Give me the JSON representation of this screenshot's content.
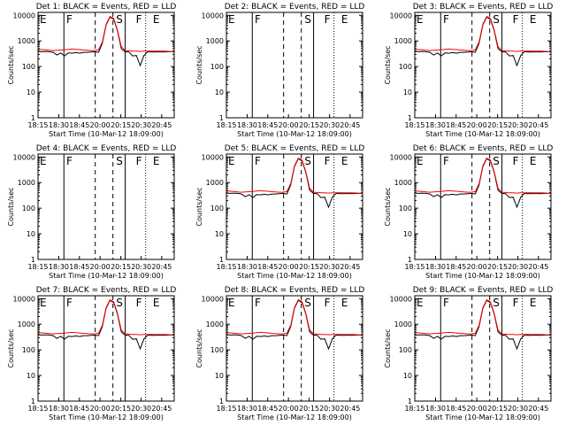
{
  "plot_colors": {
    "events": "#000000",
    "lld": "#ff0000",
    "background": "#ffffff",
    "axis": "#000000"
  },
  "chart_data": [
    {
      "type": "line",
      "title": "Det 1: BLACK = Events, RED = LLD",
      "show_data": true,
      "xticks": [
        "18:15",
        "18:30",
        "18:45",
        "20:00",
        "20:15",
        "20:30",
        "20:45"
      ],
      "xlabel": "Start Time (10-Mar-12 18:09:00)",
      "ylabel": "Counts/sec",
      "yticks": [
        "1",
        "10",
        "100",
        "1000",
        "10000"
      ],
      "ylim": [
        1,
        13000
      ],
      "log_y": true,
      "x_hours": [
        0,
        0.5,
        1,
        1.5,
        2,
        2.5,
        3,
        3.5,
        4,
        4.5,
        5,
        5.5,
        6,
        6.5,
        7,
        7.5,
        8,
        8.5,
        9,
        9.5,
        10,
        10.5,
        11,
        11.5,
        12,
        12.5,
        13,
        13.5,
        14,
        14.5,
        15,
        15.5,
        16,
        16.5,
        17,
        17.5,
        18
      ],
      "series": [
        {
          "name": "BLACK = Events",
          "values": [
            390,
            380,
            390,
            380,
            360,
            280,
            340,
            260,
            340,
            330,
            350,
            330,
            360,
            360,
            370,
            380,
            360,
            800,
            4200,
            8500,
            7000,
            2500,
            500,
            380,
            370,
            260,
            270,
            110,
            270,
            380,
            370,
            370,
            375,
            370,
            375,
            380,
            380
          ]
        },
        {
          "name": "RED = LLD",
          "values": [
            470,
            460,
            450,
            430,
            420,
            430,
            440,
            450,
            470,
            480,
            470,
            460,
            440,
            430,
            420,
            420,
            450,
            900,
            4500,
            9000,
            7500,
            2700,
            600,
            420,
            410,
            400,
            400,
            390,
            400,
            400,
            405,
            400,
            400,
            400,
            395,
            390,
            385
          ]
        }
      ],
      "markers": [
        "E",
        "F",
        "S",
        "F",
        "E"
      ]
    },
    {
      "type": "line",
      "title": "Det 2: BLACK = Events, RED = LLD",
      "show_data": false,
      "xticks": [
        "18:15",
        "18:30",
        "18:45",
        "20:00",
        "20:15",
        "20:30",
        "20:45"
      ],
      "xlabel": "Start Time (10-Mar-12 18:09:00)",
      "ylabel": "Counts/sec",
      "yticks": [
        "1",
        "10",
        "100",
        "1000",
        "10000"
      ],
      "ylim": [
        1,
        13000
      ],
      "log_y": true,
      "x_hours": [],
      "series": [],
      "markers": [
        "E",
        "F",
        "S",
        "F",
        "E"
      ]
    },
    {
      "type": "line",
      "title": "Det 3: BLACK = Events, RED = LLD",
      "show_data": true,
      "xticks": [
        "18:15",
        "18:30",
        "18:45",
        "20:00",
        "20:15",
        "20:30",
        "20:45"
      ],
      "xlabel": "Start Time (10-Mar-12 18:09:00)",
      "ylabel": "Counts/sec",
      "yticks": [
        "1",
        "10",
        "100",
        "1000",
        "10000"
      ],
      "ylim": [
        1,
        13000
      ],
      "log_y": true,
      "x_hours": [
        0,
        0.5,
        1,
        1.5,
        2,
        2.5,
        3,
        3.5,
        4,
        4.5,
        5,
        5.5,
        6,
        6.5,
        7,
        7.5,
        8,
        8.5,
        9,
        9.5,
        10,
        10.5,
        11,
        11.5,
        12,
        12.5,
        13,
        13.5,
        14,
        14.5,
        15,
        15.5,
        16,
        16.5,
        17,
        17.5,
        18
      ],
      "series": [
        {
          "name": "BLACK = Events",
          "values": [
            390,
            380,
            390,
            380,
            360,
            280,
            340,
            260,
            340,
            330,
            350,
            330,
            360,
            360,
            370,
            380,
            360,
            800,
            4200,
            8500,
            7000,
            2500,
            500,
            380,
            370,
            260,
            270,
            110,
            270,
            380,
            370,
            370,
            375,
            370,
            375,
            380,
            380
          ]
        },
        {
          "name": "RED = LLD",
          "values": [
            470,
            460,
            450,
            430,
            420,
            430,
            440,
            450,
            470,
            480,
            470,
            460,
            440,
            430,
            420,
            420,
            450,
            900,
            4500,
            9000,
            7500,
            2700,
            600,
            420,
            410,
            400,
            400,
            390,
            400,
            400,
            405,
            400,
            400,
            400,
            395,
            390,
            385
          ]
        }
      ],
      "markers": [
        "E",
        "F",
        "S",
        "F",
        "E"
      ]
    },
    {
      "type": "line",
      "title": "Det 4: BLACK = Events, RED = LLD",
      "show_data": false,
      "xticks": [
        "18:15",
        "18:30",
        "18:45",
        "20:00",
        "20:15",
        "20:30",
        "20:45"
      ],
      "xlabel": "Start Time (10-Mar-12 18:09:00)",
      "ylabel": "Counts/sec",
      "yticks": [
        "1",
        "10",
        "100",
        "1000",
        "10000"
      ],
      "ylim": [
        1,
        13000
      ],
      "log_y": true,
      "x_hours": [],
      "series": [],
      "markers": [
        "E",
        "F",
        "S",
        "F",
        "E"
      ]
    },
    {
      "type": "line",
      "title": "Det 5: BLACK = Events, RED = LLD",
      "show_data": true,
      "xticks": [
        "18:15",
        "18:30",
        "18:45",
        "20:00",
        "20:15",
        "20:30",
        "20:45"
      ],
      "xlabel": "Start Time (10-Mar-12 18:09:00)",
      "ylabel": "Counts/sec",
      "yticks": [
        "1",
        "10",
        "100",
        "1000",
        "10000"
      ],
      "ylim": [
        1,
        13000
      ],
      "log_y": true,
      "x_hours": [
        0,
        0.5,
        1,
        1.5,
        2,
        2.5,
        3,
        3.5,
        4,
        4.5,
        5,
        5.5,
        6,
        6.5,
        7,
        7.5,
        8,
        8.5,
        9,
        9.5,
        10,
        10.5,
        11,
        11.5,
        12,
        12.5,
        13,
        13.5,
        14,
        14.5,
        15,
        15.5,
        16,
        16.5,
        17,
        17.5,
        18
      ],
      "series": [
        {
          "name": "BLACK = Events",
          "values": [
            390,
            380,
            390,
            380,
            360,
            280,
            340,
            260,
            340,
            330,
            350,
            330,
            360,
            360,
            370,
            380,
            360,
            800,
            4200,
            8500,
            7000,
            2500,
            500,
            380,
            370,
            260,
            270,
            110,
            270,
            380,
            370,
            370,
            375,
            370,
            375,
            380,
            380
          ]
        },
        {
          "name": "RED = LLD",
          "values": [
            470,
            460,
            450,
            430,
            420,
            430,
            440,
            450,
            470,
            480,
            470,
            460,
            440,
            430,
            420,
            420,
            450,
            900,
            4500,
            9000,
            7500,
            2700,
            600,
            420,
            410,
            400,
            400,
            390,
            400,
            400,
            405,
            400,
            400,
            400,
            395,
            390,
            385
          ]
        }
      ],
      "markers": [
        "E",
        "F",
        "S",
        "F",
        "E"
      ]
    },
    {
      "type": "line",
      "title": "Det 6: BLACK = Events, RED = LLD",
      "show_data": true,
      "xticks": [
        "18:15",
        "18:30",
        "18:45",
        "20:00",
        "20:15",
        "20:30",
        "20:45"
      ],
      "xlabel": "Start Time (10-Mar-12 18:09:00)",
      "ylabel": "Counts/sec",
      "yticks": [
        "1",
        "10",
        "100",
        "1000",
        "10000"
      ],
      "ylim": [
        1,
        13000
      ],
      "log_y": true,
      "x_hours": [
        0,
        0.5,
        1,
        1.5,
        2,
        2.5,
        3,
        3.5,
        4,
        4.5,
        5,
        5.5,
        6,
        6.5,
        7,
        7.5,
        8,
        8.5,
        9,
        9.5,
        10,
        10.5,
        11,
        11.5,
        12,
        12.5,
        13,
        13.5,
        14,
        14.5,
        15,
        15.5,
        16,
        16.5,
        17,
        17.5,
        18
      ],
      "series": [
        {
          "name": "BLACK = Events",
          "values": [
            390,
            380,
            390,
            380,
            360,
            280,
            340,
            260,
            340,
            330,
            350,
            330,
            360,
            360,
            370,
            380,
            360,
            800,
            4200,
            8500,
            7000,
            2500,
            500,
            380,
            370,
            260,
            270,
            110,
            270,
            380,
            370,
            370,
            375,
            370,
            375,
            380,
            380
          ]
        },
        {
          "name": "RED = LLD",
          "values": [
            470,
            460,
            450,
            430,
            420,
            430,
            440,
            450,
            470,
            480,
            470,
            460,
            440,
            430,
            420,
            420,
            450,
            900,
            4500,
            9000,
            7500,
            2700,
            600,
            420,
            410,
            400,
            400,
            390,
            400,
            400,
            405,
            400,
            400,
            400,
            395,
            390,
            385
          ]
        }
      ],
      "markers": [
        "E",
        "F",
        "S",
        "F",
        "E"
      ]
    },
    {
      "type": "line",
      "title": "Det 7: BLACK = Events, RED = LLD",
      "show_data": true,
      "xticks": [
        "18:15",
        "18:30",
        "18:45",
        "20:00",
        "20:15",
        "20:30",
        "20:45"
      ],
      "xlabel": "Start Time (10-Mar-12 18:09:00)",
      "ylabel": "Counts/sec",
      "yticks": [
        "1",
        "10",
        "100",
        "1000",
        "10000"
      ],
      "ylim": [
        1,
        13000
      ],
      "log_y": true,
      "x_hours": [
        0,
        0.5,
        1,
        1.5,
        2,
        2.5,
        3,
        3.5,
        4,
        4.5,
        5,
        5.5,
        6,
        6.5,
        7,
        7.5,
        8,
        8.5,
        9,
        9.5,
        10,
        10.5,
        11,
        11.5,
        12,
        12.5,
        13,
        13.5,
        14,
        14.5,
        15,
        15.5,
        16,
        16.5,
        17,
        17.5,
        18
      ],
      "series": [
        {
          "name": "BLACK = Events",
          "values": [
            390,
            380,
            390,
            380,
            360,
            280,
            340,
            260,
            340,
            330,
            350,
            330,
            360,
            360,
            370,
            380,
            360,
            800,
            4200,
            8500,
            7000,
            2500,
            500,
            380,
            370,
            260,
            270,
            110,
            270,
            380,
            370,
            370,
            375,
            370,
            375,
            380,
            380
          ]
        },
        {
          "name": "RED = LLD",
          "values": [
            470,
            460,
            450,
            430,
            420,
            430,
            440,
            450,
            470,
            480,
            470,
            460,
            440,
            430,
            420,
            420,
            450,
            900,
            4500,
            9000,
            7500,
            2700,
            600,
            420,
            410,
            400,
            400,
            390,
            400,
            400,
            405,
            400,
            400,
            400,
            395,
            390,
            385
          ]
        }
      ],
      "markers": [
        "E",
        "F",
        "S",
        "F",
        "E"
      ]
    },
    {
      "type": "line",
      "title": "Det 8: BLACK = Events, RED = LLD",
      "show_data": true,
      "xticks": [
        "18:15",
        "18:30",
        "18:45",
        "20:00",
        "20:15",
        "20:30",
        "20:45"
      ],
      "xlabel": "Start Time (10-Mar-12 18:09:00)",
      "ylabel": "Counts/sec",
      "yticks": [
        "1",
        "10",
        "100",
        "1000",
        "10000"
      ],
      "ylim": [
        1,
        13000
      ],
      "log_y": true,
      "x_hours": [
        0,
        0.5,
        1,
        1.5,
        2,
        2.5,
        3,
        3.5,
        4,
        4.5,
        5,
        5.5,
        6,
        6.5,
        7,
        7.5,
        8,
        8.5,
        9,
        9.5,
        10,
        10.5,
        11,
        11.5,
        12,
        12.5,
        13,
        13.5,
        14,
        14.5,
        15,
        15.5,
        16,
        16.5,
        17,
        17.5,
        18
      ],
      "series": [
        {
          "name": "BLACK = Events",
          "values": [
            390,
            380,
            390,
            380,
            360,
            280,
            340,
            260,
            340,
            330,
            350,
            330,
            360,
            360,
            370,
            380,
            360,
            800,
            4200,
            8500,
            7000,
            2500,
            500,
            380,
            370,
            260,
            270,
            110,
            270,
            380,
            370,
            370,
            375,
            370,
            375,
            380,
            380
          ]
        },
        {
          "name": "RED = LLD",
          "values": [
            470,
            460,
            450,
            430,
            420,
            430,
            440,
            450,
            470,
            480,
            470,
            460,
            440,
            430,
            420,
            420,
            450,
            900,
            4500,
            9000,
            7500,
            2700,
            600,
            420,
            410,
            400,
            400,
            390,
            400,
            400,
            405,
            400,
            400,
            400,
            395,
            390,
            385
          ]
        }
      ],
      "markers": [
        "E",
        "F",
        "S",
        "F",
        "E"
      ]
    },
    {
      "type": "line",
      "title": "Det 9: BLACK = Events, RED = LLD",
      "show_data": true,
      "xticks": [
        "18:15",
        "18:30",
        "18:45",
        "20:00",
        "20:15",
        "20:30",
        "20:45"
      ],
      "xlabel": "Start Time (10-Mar-12 18:09:00)",
      "ylabel": "Counts/sec",
      "yticks": [
        "1",
        "10",
        "100",
        "1000",
        "10000"
      ],
      "ylim": [
        1,
        13000
      ],
      "log_y": true,
      "x_hours": [
        0,
        0.5,
        1,
        1.5,
        2,
        2.5,
        3,
        3.5,
        4,
        4.5,
        5,
        5.5,
        6,
        6.5,
        7,
        7.5,
        8,
        8.5,
        9,
        9.5,
        10,
        10.5,
        11,
        11.5,
        12,
        12.5,
        13,
        13.5,
        14,
        14.5,
        15,
        15.5,
        16,
        16.5,
        17,
        17.5,
        18
      ],
      "series": [
        {
          "name": "BLACK = Events",
          "values": [
            390,
            380,
            390,
            380,
            360,
            280,
            340,
            260,
            340,
            330,
            350,
            330,
            360,
            360,
            370,
            380,
            360,
            800,
            4200,
            8500,
            7000,
            2500,
            500,
            380,
            370,
            260,
            270,
            110,
            270,
            380,
            370,
            370,
            375,
            370,
            375,
            380,
            380
          ]
        },
        {
          "name": "RED = LLD",
          "values": [
            470,
            460,
            450,
            430,
            420,
            430,
            440,
            450,
            470,
            480,
            470,
            460,
            440,
            430,
            420,
            420,
            450,
            900,
            4500,
            9000,
            7500,
            2700,
            600,
            420,
            410,
            400,
            400,
            390,
            400,
            400,
            405,
            400,
            400,
            400,
            395,
            390,
            385
          ]
        }
      ],
      "markers": [
        "E",
        "F",
        "S",
        "F",
        "E"
      ]
    }
  ]
}
